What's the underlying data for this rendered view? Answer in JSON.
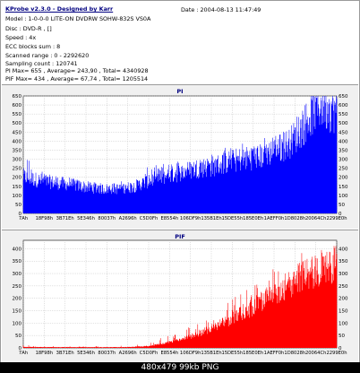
{
  "header": {
    "title": "KProbe v2.3.0 - Designed by Karr",
    "date": "Date : 2004-08-13 11:47:49",
    "model": "Model : 1-0-0-0 LITE-ON DVDRW SOHW-832S  VS0A",
    "disc": "Disc : DVD-R ,  []",
    "speed": "Speed : 4x",
    "ecc": "ECC blocks sum : 8",
    "scanned": "Scanned range : 0 - 2292620",
    "sampling": "Sampling count : 120741",
    "pi_stats": "PI Max= 655 , Average= 243,90 , Total= 4340928",
    "pif_stats": "PIF Max= 434 , Average= 67,74 , Total= 1205514"
  },
  "watermark": "480x479  99kb  PNG",
  "colors": {
    "pi": "#0000ff",
    "pif": "#ff0000",
    "grid": "#b4b4b4",
    "panel": "#f0f0f0",
    "title": "#000080"
  },
  "chart_data": [
    {
      "type": "area",
      "title": "PI",
      "x_ticks": [
        "7Ah",
        "18F98h",
        "3B71Eh",
        "5E346h",
        "80037h",
        "A2696h",
        "C5D0Fh",
        "E8554h",
        "106DF9h",
        "135B1Eh",
        "15DE55h",
        "185E0Eh",
        "1AEFF0h",
        "1D8028h",
        "20064Ch",
        "2299E0h"
      ],
      "ylim": [
        0,
        650
      ],
      "y_ticks": [
        0,
        50,
        100,
        150,
        200,
        250,
        300,
        350,
        400,
        450,
        500,
        550,
        600,
        650
      ],
      "grid": true,
      "x": [
        0,
        0.03,
        0.06,
        0.1,
        0.15,
        0.2,
        0.25,
        0.3,
        0.35,
        0.4,
        0.45,
        0.5,
        0.55,
        0.6,
        0.65,
        0.7,
        0.75,
        0.8,
        0.85,
        0.88,
        0.91,
        0.93,
        0.95,
        0.97,
        1.0
      ],
      "values": [
        210,
        195,
        185,
        175,
        165,
        150,
        140,
        140,
        150,
        185,
        210,
        230,
        255,
        265,
        290,
        310,
        320,
        350,
        400,
        460,
        540,
        590,
        620,
        600,
        580
      ],
      "peak_values": [
        330,
        290,
        260,
        220,
        200,
        185,
        170,
        175,
        190,
        260,
        280,
        300,
        330,
        340,
        370,
        400,
        410,
        440,
        490,
        560,
        640,
        655,
        650,
        640,
        620
      ]
    },
    {
      "type": "area",
      "title": "PIF",
      "x_ticks": [
        "7Ah",
        "18F98h",
        "3B71Eh",
        "5E346h",
        "80037h",
        "A2696h",
        "C5D0Fh",
        "E8554h",
        "106DF9h",
        "135B1Eh",
        "15DE55h",
        "185E0Eh",
        "1AEFF0h",
        "1D8028h",
        "20064Ch",
        "2299E0h"
      ],
      "ylim": [
        0,
        434
      ],
      "y_ticks": [
        0,
        50,
        100,
        150,
        200,
        250,
        300,
        350,
        400
      ],
      "grid": true,
      "x": [
        0,
        0.1,
        0.2,
        0.3,
        0.35,
        0.4,
        0.45,
        0.5,
        0.55,
        0.6,
        0.65,
        0.7,
        0.75,
        0.8,
        0.85,
        0.9,
        0.95,
        1.0
      ],
      "values": [
        4,
        3,
        3,
        3,
        4,
        8,
        18,
        35,
        55,
        80,
        110,
        145,
        185,
        225,
        265,
        300,
        330,
        350
      ],
      "peak_values": [
        12,
        8,
        6,
        8,
        12,
        25,
        45,
        70,
        105,
        140,
        180,
        230,
        280,
        320,
        360,
        400,
        430,
        434
      ]
    }
  ]
}
